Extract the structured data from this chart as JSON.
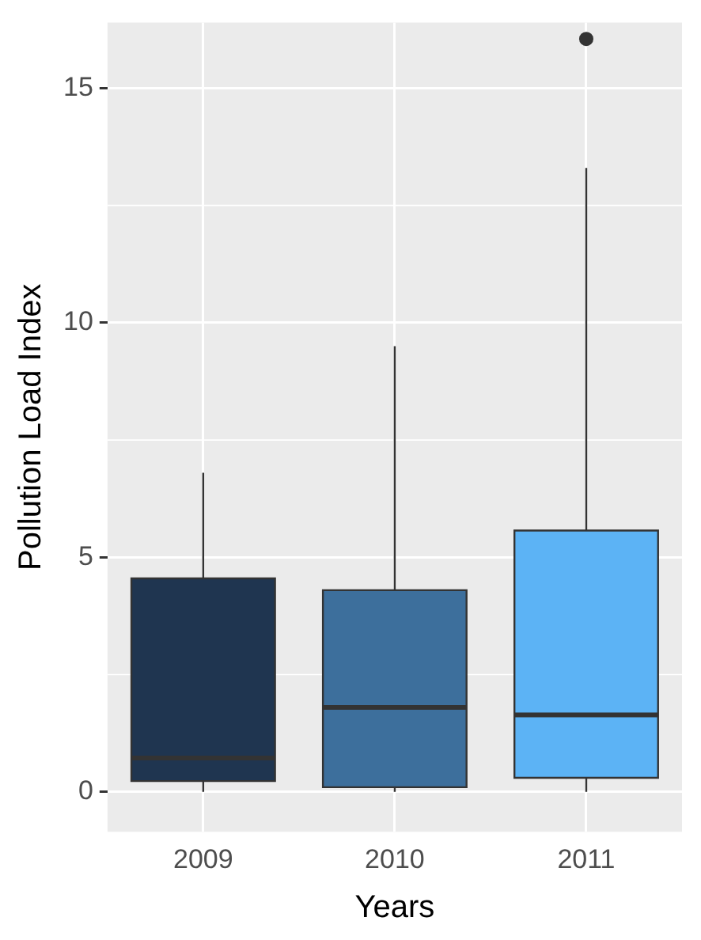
{
  "chart_data": {
    "type": "box",
    "xlabel": "Years",
    "ylabel": "Pollution Load Index",
    "categories": [
      "2009",
      "2010",
      "2011"
    ],
    "colors": [
      "#1f3550",
      "#3d6f9c",
      "#5cb3f5"
    ],
    "boxes": [
      {
        "low": 0,
        "q1": 0.23,
        "median": 0.72,
        "q3": 4.55,
        "high": 6.8
      },
      {
        "low": 0,
        "q1": 0.1,
        "median": 1.8,
        "q3": 4.3,
        "high": 9.5
      },
      {
        "low": 0,
        "q1": 0.3,
        "median": 1.64,
        "q3": 5.57,
        "high": 13.3,
        "outliers": [
          16.05
        ]
      }
    ],
    "ylim": [
      -0.85,
      16.4
    ],
    "yticks": [
      0,
      5,
      10,
      15
    ],
    "grid": true,
    "legend": false
  }
}
